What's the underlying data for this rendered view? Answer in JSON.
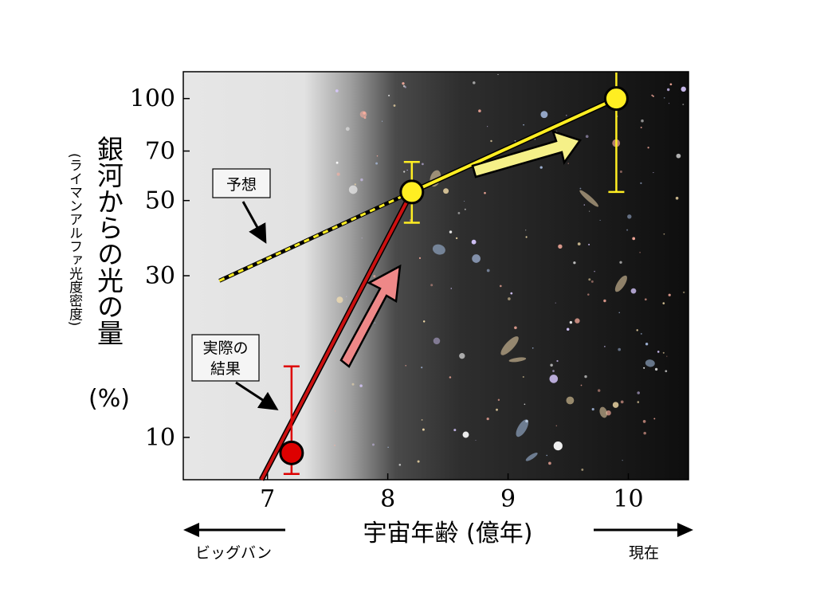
{
  "chart_data": {
    "type": "line",
    "xlabel": "宇宙年齢 (億年)",
    "ylabel": "銀河からの光の量",
    "ylabel_unit": "(%)",
    "ylabel_sub": "(ライマンアルファ光度密度)",
    "xlim": [
      6.3,
      10.5
    ],
    "ylim": [
      7.5,
      120
    ],
    "y_scale": "log",
    "x_ticks": [
      "7",
      "8",
      "9",
      "10"
    ],
    "y_ticks": [
      "10",
      "30",
      "50",
      "70",
      "100"
    ],
    "series": [
      {
        "name": "予想",
        "style": "dashed",
        "color": "#ffee22",
        "x": [
          6.6,
          8.2
        ],
        "y": [
          29,
          53
        ]
      },
      {
        "name": "実際の結果",
        "style": "solid",
        "color": "#cc1111",
        "x": [
          6.95,
          8.2
        ],
        "y": [
          7.5,
          53
        ]
      },
      {
        "name": "",
        "style": "solid",
        "color": "#ffee22",
        "x": [
          8.2,
          9.9
        ],
        "y": [
          53,
          100
        ]
      }
    ],
    "points": [
      {
        "x": 7.2,
        "y": 9,
        "color": "#dd0000",
        "err_low": 7.8,
        "err_high": 16.2
      },
      {
        "x": 8.2,
        "y": 53,
        "color": "#ffee22",
        "err_low": 43,
        "err_high": 65
      },
      {
        "x": 9.9,
        "y": 100,
        "color": "#ffee22",
        "err_low": 53,
        "err_high": 125
      }
    ],
    "annotations": {
      "prediction": "予想",
      "actual_line1": "実際の",
      "actual_line2": "結果"
    },
    "arrows": {
      "left_label": "ビッグバン",
      "right_label": "現在"
    }
  }
}
